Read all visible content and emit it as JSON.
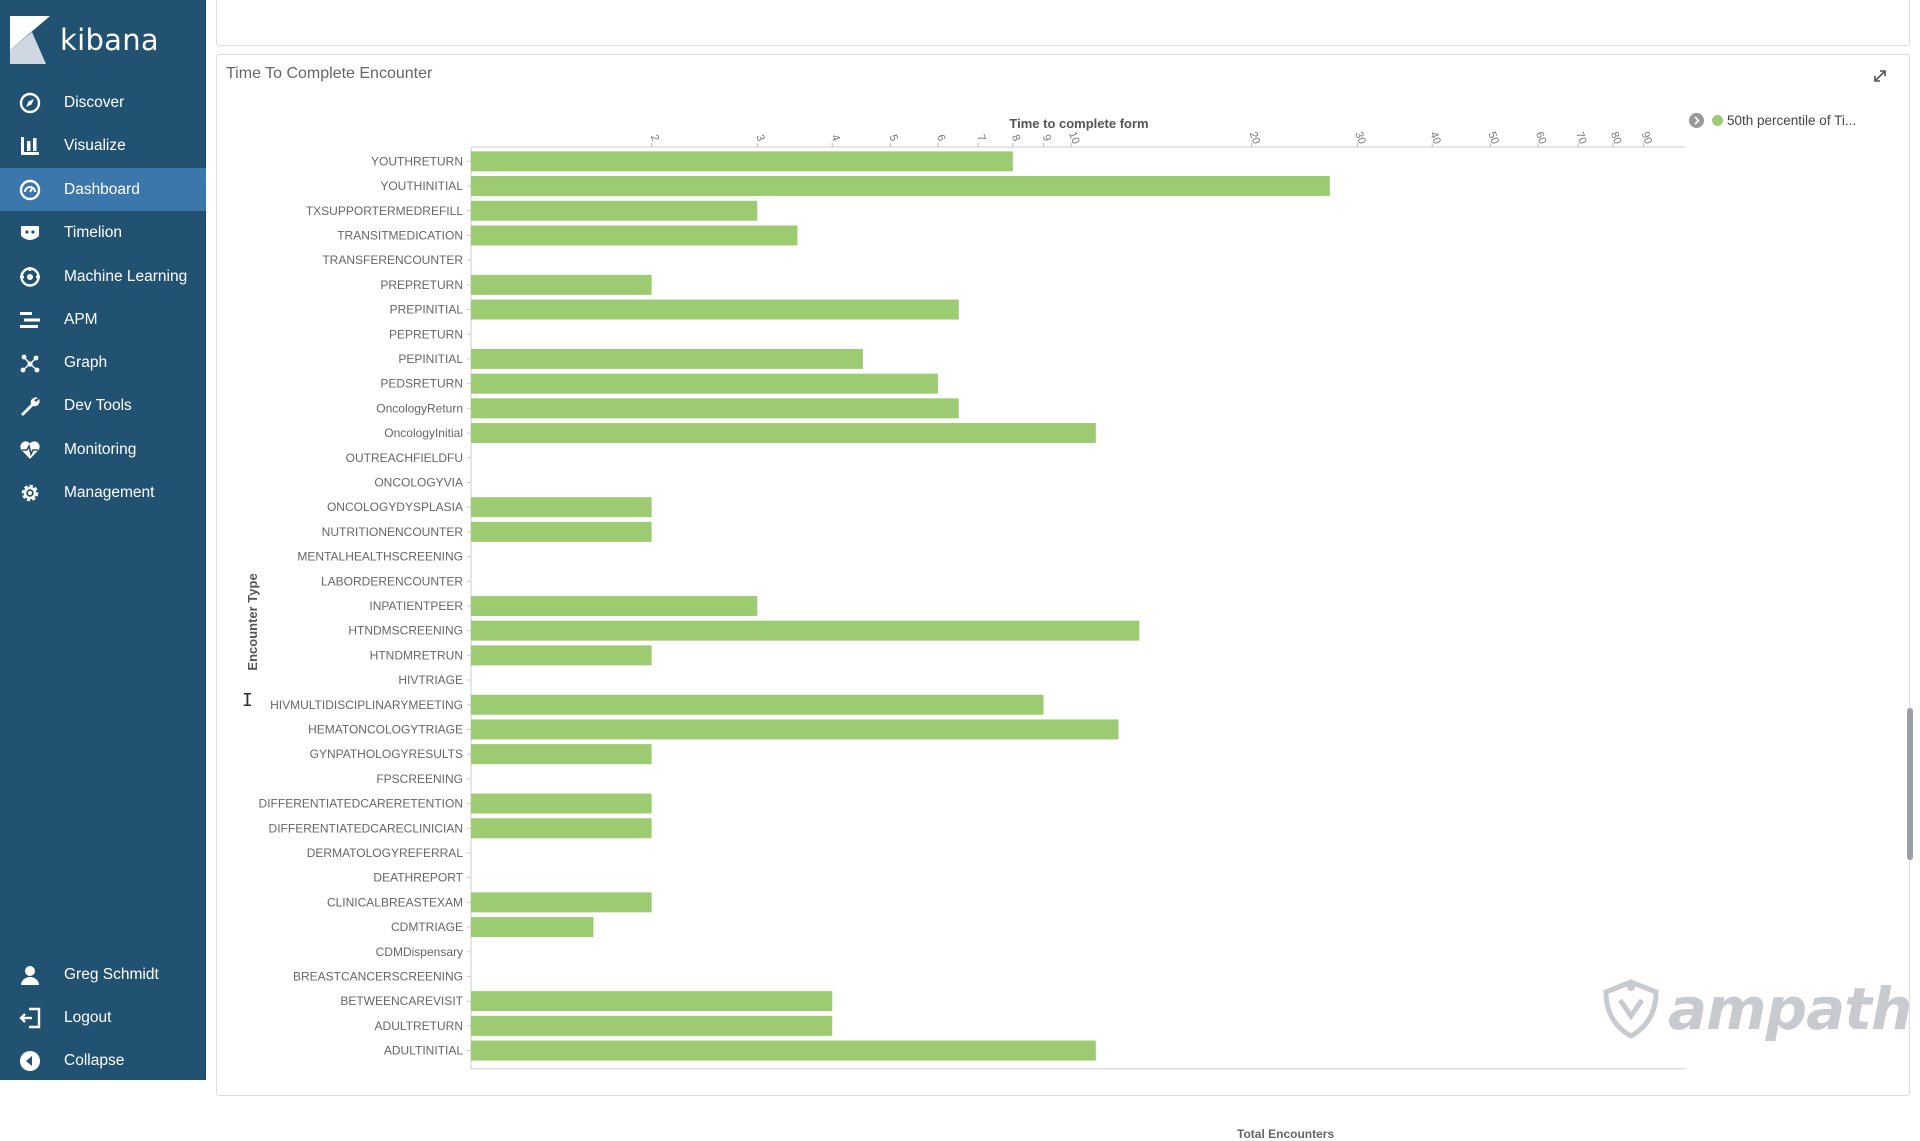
{
  "app": {
    "brand": "kibana"
  },
  "sidebar": {
    "items": [
      {
        "label": "Discover",
        "icon": "compass-icon"
      },
      {
        "label": "Visualize",
        "icon": "bar-chart-icon"
      },
      {
        "label": "Dashboard",
        "icon": "dashboard-icon",
        "active": true
      },
      {
        "label": "Timelion",
        "icon": "timelion-icon"
      },
      {
        "label": "Machine Learning",
        "icon": "machine-learning-icon"
      },
      {
        "label": "APM",
        "icon": "apm-icon"
      },
      {
        "label": "Graph",
        "icon": "graph-icon"
      },
      {
        "label": "Dev Tools",
        "icon": "wrench-icon"
      },
      {
        "label": "Monitoring",
        "icon": "heartbeat-icon"
      },
      {
        "label": "Management",
        "icon": "gear-icon"
      }
    ],
    "footer": [
      {
        "label": "Greg Schmidt",
        "icon": "user-icon"
      },
      {
        "label": "Logout",
        "icon": "logout-icon"
      },
      {
        "label": "Collapse",
        "icon": "collapse-icon"
      }
    ]
  },
  "panel": {
    "title": "Time To Complete Encounter",
    "legend_label": "50th percentile of Ti...",
    "footer_label": "Total Encounters"
  },
  "watermark": "ampath",
  "colors": {
    "sidebar": "#225272",
    "active": "#3b77aa",
    "bar": "#9dcb72"
  },
  "chart_data": {
    "type": "bar",
    "orientation": "horizontal",
    "xlabel": "Time to complete form",
    "ylabel": "Encounter Type",
    "xscale": "log",
    "xlim": [
      1,
      100
    ],
    "x_ticks": [
      2,
      3,
      4,
      5,
      6,
      7,
      8,
      9,
      10,
      20,
      30,
      40,
      50,
      60,
      70,
      80,
      90
    ],
    "legend_position": "top-right",
    "series": [
      {
        "name": "50th percentile of Ti...",
        "color": "#9dcb72",
        "categories": [
          "YOUTHRETURN",
          "YOUTHINITIAL",
          "TXSUPPORTERMEDREFILL",
          "TRANSITMEDICATION",
          "TRANSFERENCOUNTER",
          "PREPRETURN",
          "PREPINITIAL",
          "PEPRETURN",
          "PEPINITIAL",
          "PEDSRETURN",
          "OncologyReturn",
          "OncologyInitial",
          "OUTREACHFIELDFU",
          "ONCOLOGYVIA",
          "ONCOLOGYDYSPLASIA",
          "NUTRITIONENCOUNTER",
          "MENTALHEALTHSCREENING",
          "LABORDERENCOUNTER",
          "INPATIENTPEER",
          "HTNDMSCREENING",
          "HTNDMRETRUN",
          "HIVTRIAGE",
          "HIVMULTIDISCIPLINARYMEETING",
          "HEMATONCOLOGYTRIAGE",
          "GYNPATHOLOGYRESULTS",
          "FPSCREENING",
          "DIFFERENTIATEDCARERETENTION",
          "DIFFERENTIATEDCARECLINICIAN",
          "DERMATOLOGYREFERRAL",
          "DEATHREPORT",
          "CLINICALBREASTEXAM",
          "CDMTRIAGE",
          "CDMDispensary",
          "BREASTCANCERSCREENING",
          "BETWEENCAREVISIT",
          "ADULTRETURN",
          "ADULTINITIAL"
        ],
        "values": [
          8,
          27,
          3,
          3.5,
          0,
          2,
          6.5,
          0,
          4.5,
          6,
          6.5,
          11,
          0,
          0,
          2,
          2,
          0,
          0,
          3,
          13,
          2,
          0,
          9,
          12,
          2,
          0,
          2,
          2,
          0,
          0,
          2,
          1.6,
          0,
          0,
          4,
          4,
          11
        ]
      }
    ]
  }
}
